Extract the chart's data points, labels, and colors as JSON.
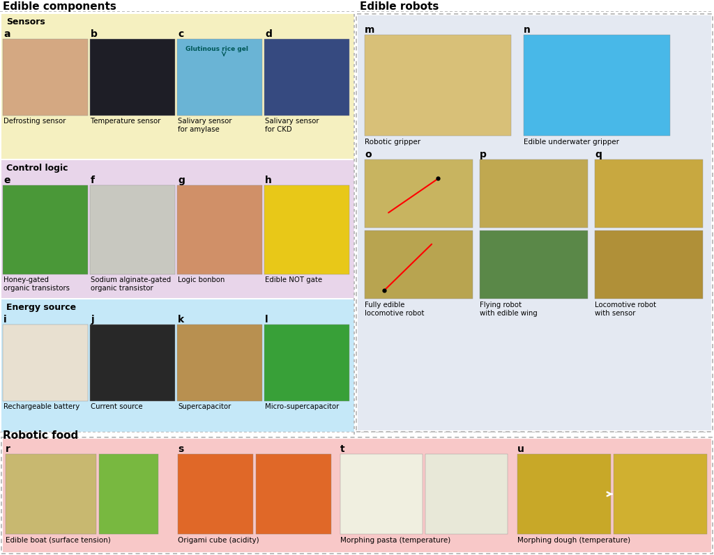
{
  "title_left": "Edible components",
  "title_right": "Edible robots",
  "title_bottom": "Robotic food",
  "bg_color": "#ffffff",
  "sensors_bg": "#f5f0c0",
  "control_bg": "#e8d5ea",
  "energy_bg": "#c5e8f8",
  "robots_bg": "#e4e9f2",
  "food_bg": "#f8c8c8",
  "dashed_color": "#aaaaaa",
  "panels": {
    "a": "Defrosting sensor",
    "b": "Temperature sensor",
    "c": "Salivary sensor\nfor amylase",
    "d": "Salivary sensor\nfor CKD",
    "e": "Honey-gated\norganic transistors",
    "f": "Sodium alginate-gated\norganic transistor",
    "g": "Logic bonbon",
    "h": "Edible NOT gate",
    "i": "Rechargeable battery",
    "j": "Current source",
    "k": "Supercapacitor",
    "l": "Micro-supercapacitor",
    "m": "Robotic gripper",
    "n": "Edible underwater gripper",
    "o": "Fully edible\nlocomotive robot",
    "p": "Flying robot\nwith edible wing",
    "q": "Locomotive robot\nwith sensor",
    "r": "Edible boat (surface tension)",
    "s": "Origami cube (acidity)",
    "t": "Morphing pasta (temperature)",
    "u": "Morphing dough (temperature)"
  },
  "panel_colors": {
    "a": "#d4a882",
    "b": "#1e1e26",
    "c": "#6ab4d5",
    "d": "#364a80",
    "e": "#4a9838",
    "f": "#c8c8c0",
    "g": "#d09068",
    "h": "#e8c818",
    "i": "#e8e0d0",
    "j": "#282828",
    "k": "#b89050",
    "l": "#38a038",
    "m": "#d8c078",
    "n": "#48b8e8",
    "o1": "#c8b460",
    "o2": "#b8a450",
    "p1": "#c0a850",
    "p2": "#5a8848",
    "q1": "#c8a840",
    "q2": "#b09038",
    "r1": "#c8b870",
    "r2": "#78b840",
    "s": "#e06828",
    "t1": "#f0efe0",
    "t2": "#e8e8d8",
    "u1": "#c8a828",
    "u2": "#d0b030"
  },
  "annotation_c": "Glutinous rice gel",
  "figw": 10.24,
  "figh": 7.97
}
